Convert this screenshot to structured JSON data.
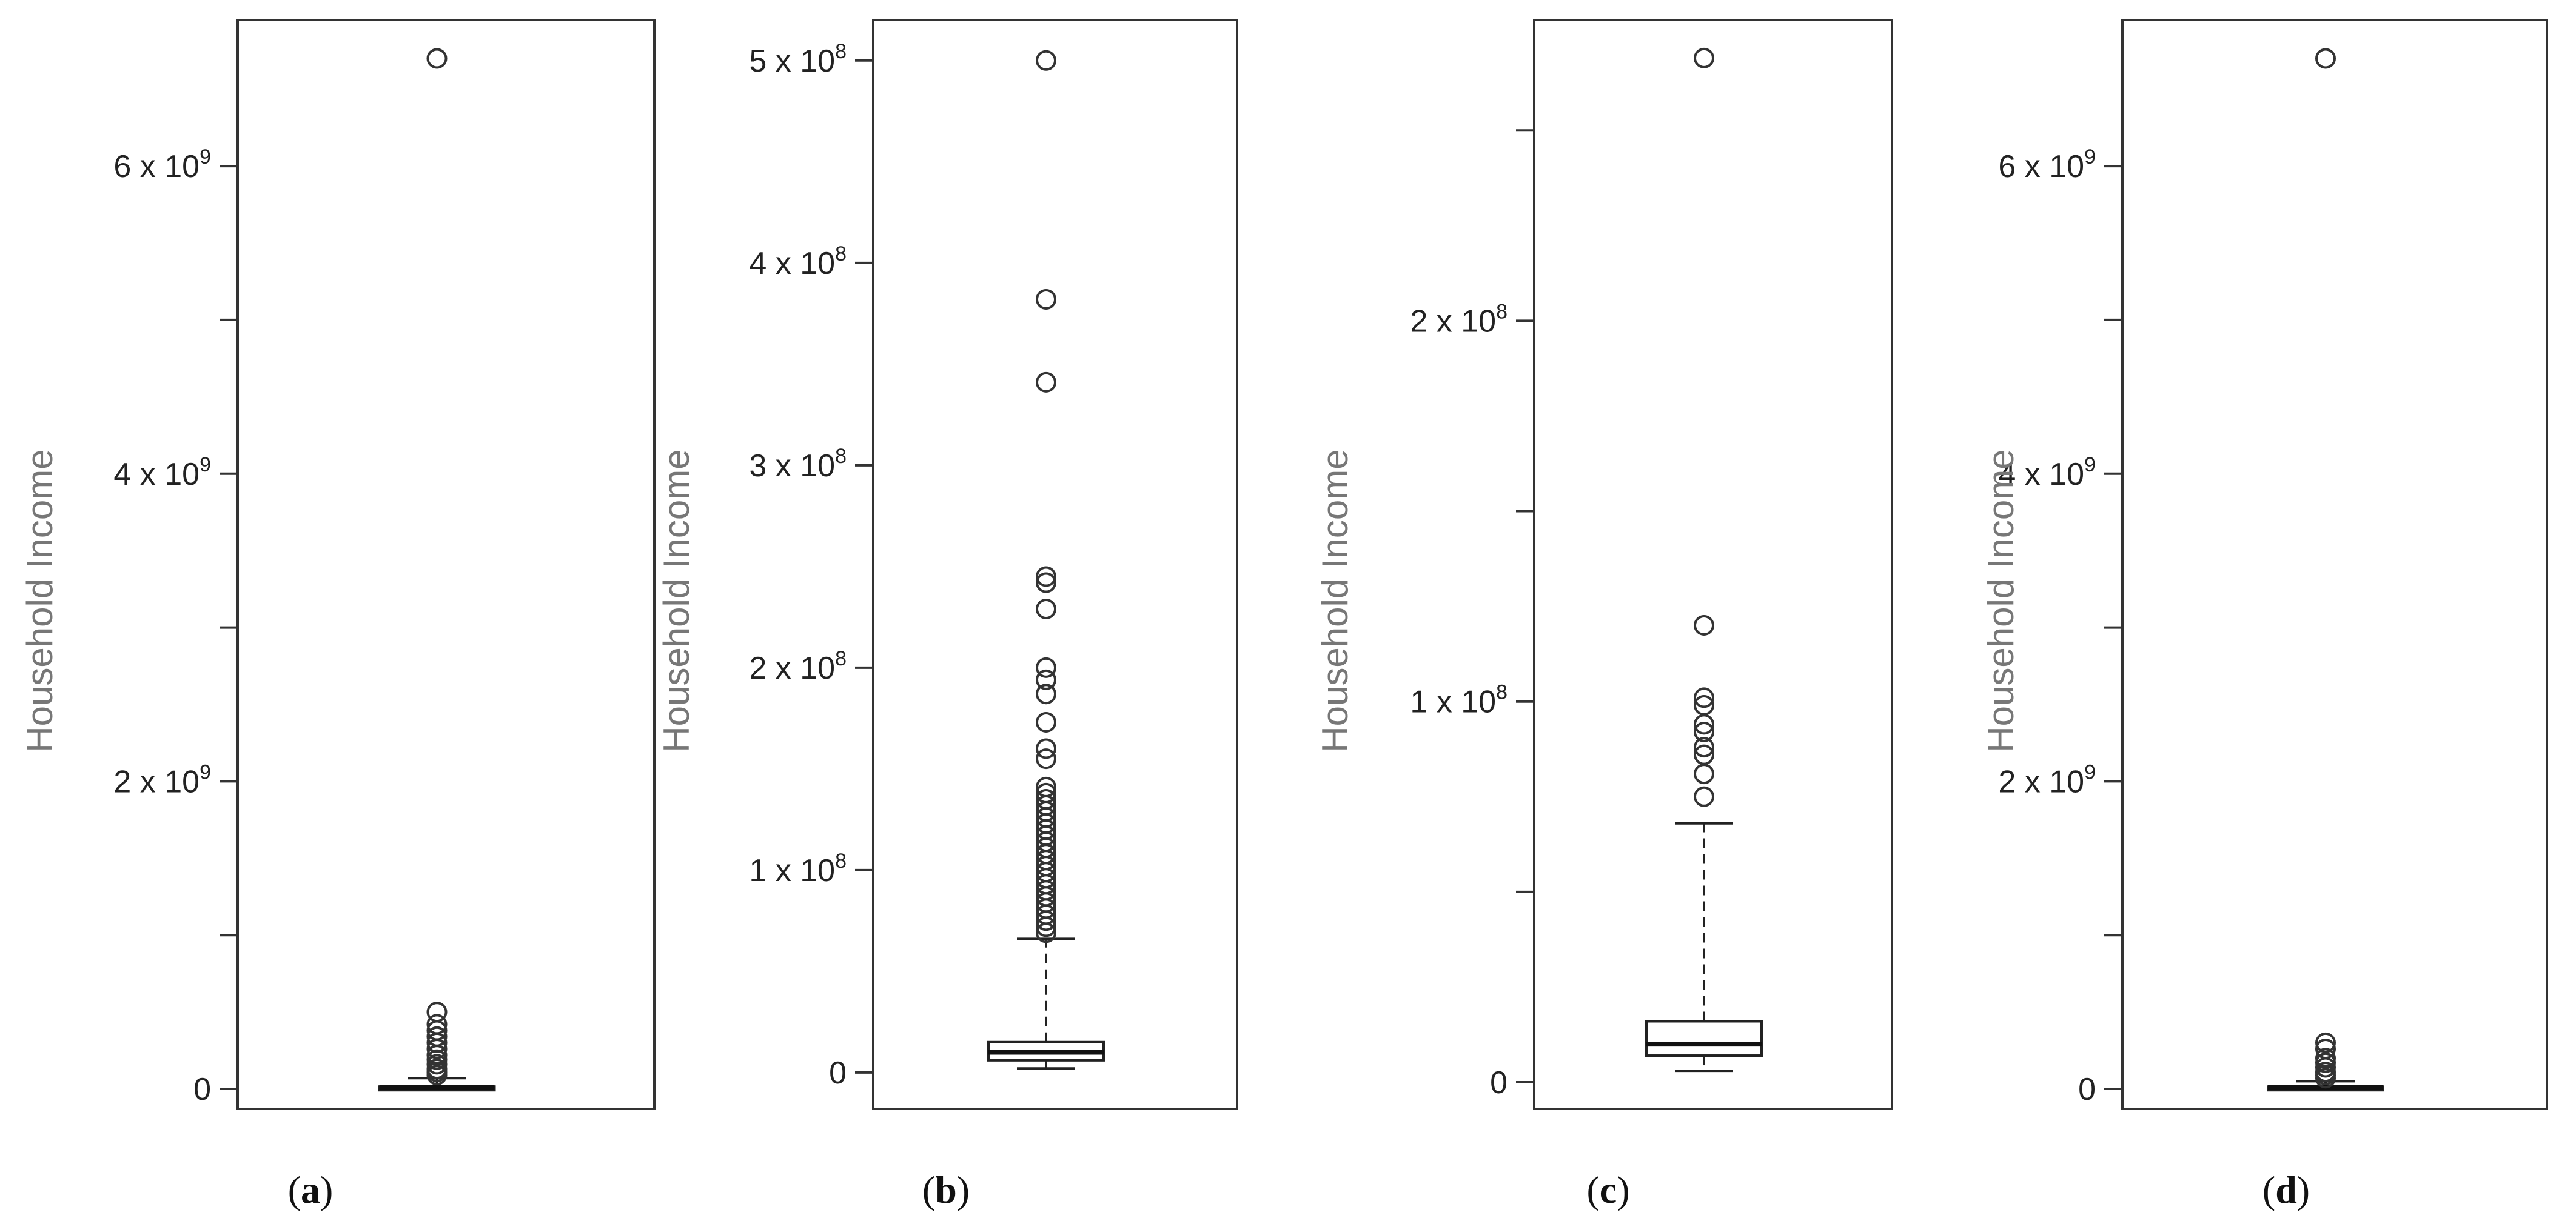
{
  "chart_data": [
    {
      "type": "box",
      "panel_label": "a",
      "ylabel": "Household Income",
      "y_ticks": [
        {
          "value": 0,
          "label": "0",
          "sup": ""
        },
        {
          "value": 1000000000,
          "label": "",
          "sup": ""
        },
        {
          "value": 2000000000,
          "label": "2 x 10",
          "sup": "9"
        },
        {
          "value": 3000000000,
          "label": "",
          "sup": ""
        },
        {
          "value": 4000000000,
          "label": "4 x 10",
          "sup": "9"
        },
        {
          "value": 5000000000,
          "label": "",
          "sup": ""
        },
        {
          "value": 6000000000,
          "label": "6 x 10",
          "sup": "9"
        }
      ],
      "ylim": [
        -130000000,
        6950000000
      ],
      "box": {
        "min": 2000000,
        "q1": 5000000,
        "median": 8000000,
        "q3": 15000000,
        "max": 70000000
      },
      "outliers": [
        6700000000,
        500000000,
        420000000,
        380000000,
        340000000,
        300000000,
        260000000,
        220000000,
        190000000,
        160000000,
        130000000,
        110000000,
        90000000
      ]
    },
    {
      "type": "box",
      "panel_label": "b",
      "ylabel": "Household Income",
      "y_ticks": [
        {
          "value": 0,
          "label": "0",
          "sup": ""
        },
        {
          "value": 100000000,
          "label": "1 x 10",
          "sup": "8"
        },
        {
          "value": 200000000,
          "label": "2 x 10",
          "sup": "8"
        },
        {
          "value": 300000000,
          "label": "3 x 10",
          "sup": "8"
        },
        {
          "value": 400000000,
          "label": "4 x 10",
          "sup": "8"
        },
        {
          "value": 500000000,
          "label": "5 x 10",
          "sup": "8"
        }
      ],
      "ylim": [
        -18000000,
        520000000
      ],
      "box": {
        "min": 2000000,
        "q1": 6000000,
        "median": 10000000,
        "q3": 15000000,
        "max": 66000000
      },
      "outliers": [
        500000000,
        382000000,
        341000000,
        245000000,
        242000000,
        229000000,
        200000000,
        194000000,
        187000000,
        173000000,
        160000000,
        155000000,
        141000000,
        138000000,
        135000000,
        132000000,
        129000000,
        126000000,
        123000000,
        120000000,
        117000000,
        114000000,
        111000000,
        108000000,
        105000000,
        102000000,
        99000000,
        96000000,
        93000000,
        90000000,
        87000000,
        84000000,
        81000000,
        78000000,
        75000000,
        72000000,
        69000000
      ]
    },
    {
      "type": "box",
      "panel_label": "c",
      "ylabel": "Household Income",
      "y_ticks": [
        {
          "value": 0,
          "label": "0",
          "sup": ""
        },
        {
          "value": 50000000,
          "label": "",
          "sup": ""
        },
        {
          "value": 100000000,
          "label": "1 x 10",
          "sup": "8"
        },
        {
          "value": 150000000,
          "label": "",
          "sup": ""
        },
        {
          "value": 200000000,
          "label": "2 x 10",
          "sup": "8"
        },
        {
          "value": 250000000,
          "label": "",
          "sup": ""
        }
      ],
      "ylim": [
        -7000000,
        279000000
      ],
      "box": {
        "min": 3000000,
        "q1": 7000000,
        "median": 10000000,
        "q3": 16000000,
        "max": 68000000
      },
      "outliers": [
        269000000,
        120000000,
        101000000,
        99000000,
        94000000,
        92000000,
        88000000,
        86000000,
        81000000,
        75000000
      ]
    },
    {
      "type": "box",
      "panel_label": "d",
      "ylabel": "Household Income",
      "y_ticks": [
        {
          "value": 0,
          "label": "0",
          "sup": ""
        },
        {
          "value": 1000000000,
          "label": "",
          "sup": ""
        },
        {
          "value": 2000000000,
          "label": "2 x 10",
          "sup": "9"
        },
        {
          "value": 3000000000,
          "label": "",
          "sup": ""
        },
        {
          "value": 4000000000,
          "label": "4 x 10",
          "sup": "9"
        },
        {
          "value": 5000000000,
          "label": "",
          "sup": ""
        },
        {
          "value": 6000000000,
          "label": "6 x 10",
          "sup": "9"
        }
      ],
      "ylim": [
        -130000000,
        6950000000
      ],
      "box": {
        "min": 2000000,
        "q1": 5000000,
        "median": 8000000,
        "q3": 15000000,
        "max": 50000000
      },
      "outliers": [
        6700000000,
        300000000,
        260000000,
        200000000,
        170000000,
        140000000,
        110000000,
        90000000,
        70000000
      ]
    }
  ]
}
